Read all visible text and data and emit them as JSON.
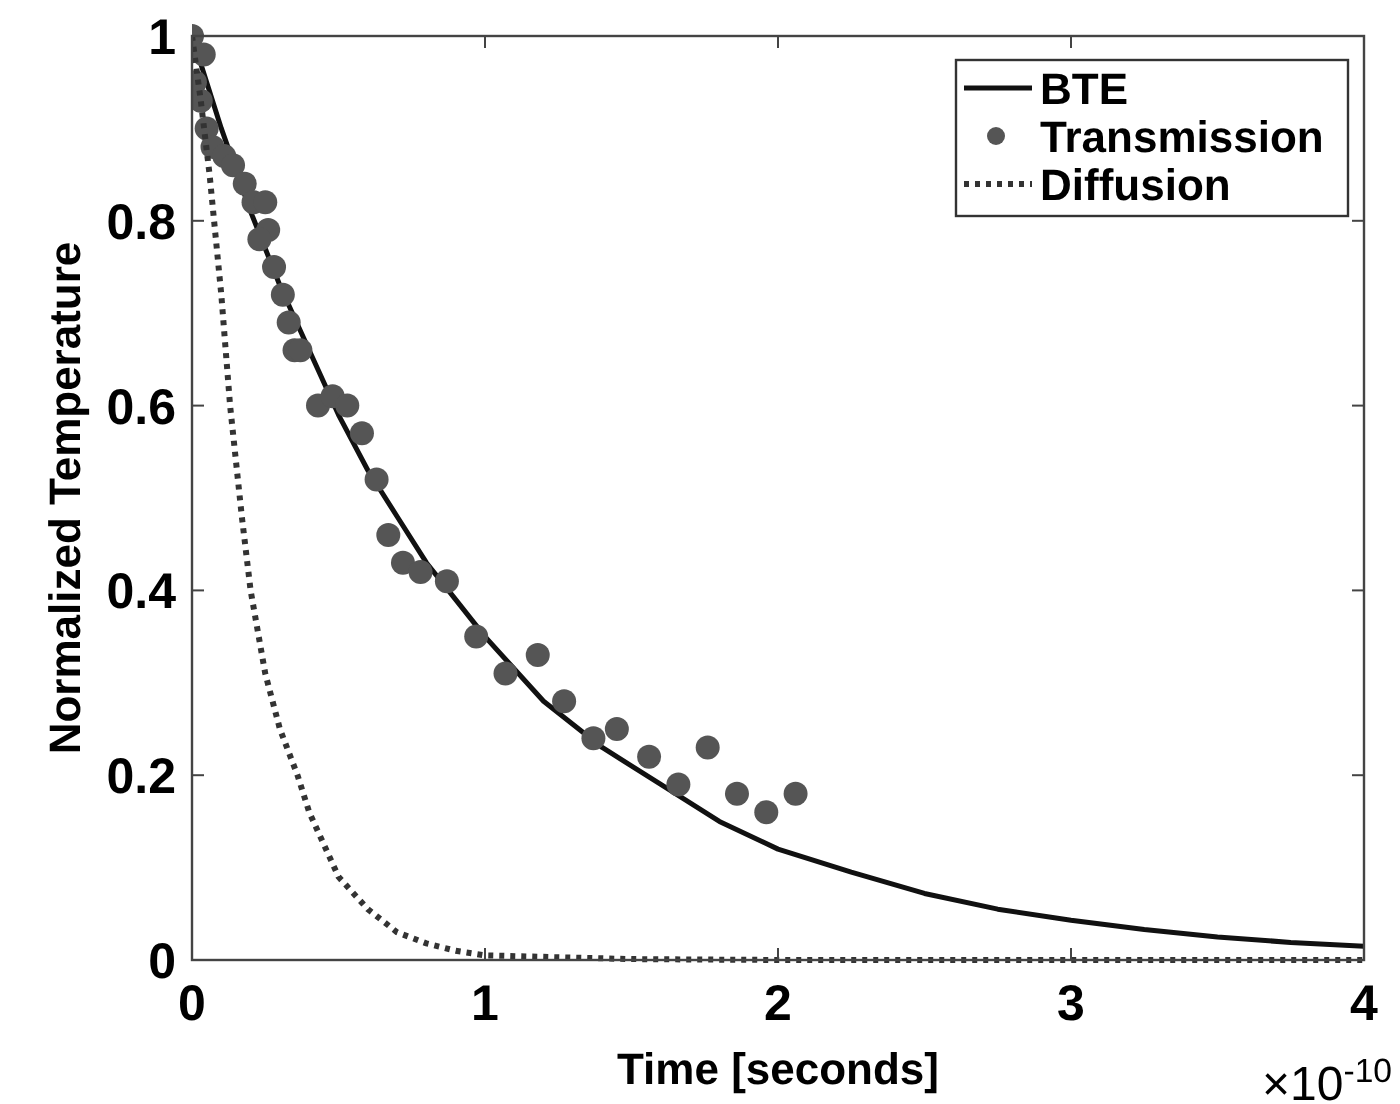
{
  "chart_data": {
    "type": "line",
    "xlabel": "Time [seconds]",
    "ylabel": "Normalized Temperature",
    "xlim": [
      0,
      4
    ],
    "ylim": [
      0,
      1
    ],
    "xticks": [
      0,
      1,
      2,
      3,
      4
    ],
    "yticks": [
      0,
      0.2,
      0.4,
      0.6,
      0.8,
      1
    ],
    "grid": false,
    "legend": "top right",
    "annotations": [
      "×10$^{-10}$"
    ],
    "series": [
      {
        "name": "BTE",
        "color": "#111111",
        "line_style": "solid",
        "x": [
          0,
          0.1,
          0.2,
          0.3,
          0.4,
          0.5,
          0.6,
          0.7,
          0.8,
          0.9,
          1,
          1.2,
          1.4,
          1.6,
          1.8,
          2,
          2.25,
          2.5,
          2.75,
          3,
          3.25,
          3.5,
          3.75,
          4
        ],
        "values": [
          1,
          0.9,
          0.81,
          0.73,
          0.66,
          0.59,
          0.53,
          0.48,
          0.43,
          0.39,
          0.35,
          0.28,
          0.23,
          0.19,
          0.15,
          0.12,
          0.095,
          0.072,
          0.055,
          0.043,
          0.033,
          0.025,
          0.019,
          0.015
        ]
      },
      {
        "name": "Transmission",
        "type": "scatter",
        "color": "#555555",
        "marker": "circle",
        "x": [
          0,
          0.04,
          0.01,
          0.03,
          0.05,
          0.07,
          0.11,
          0.14,
          0.18,
          0.21,
          0.25,
          0.26,
          0.23,
          0.28,
          0.31,
          0.33,
          0.35,
          0.37,
          0.43,
          0.48,
          0.53,
          0.58,
          0.63,
          0.67,
          0.72,
          0.78,
          0.87,
          0.97,
          1.07,
          1.18,
          1.27,
          1.37,
          1.45,
          1.56,
          1.66,
          1.76,
          1.86,
          1.96,
          2.06
        ],
        "values": [
          1,
          0.98,
          0.95,
          0.93,
          0.9,
          0.88,
          0.87,
          0.86,
          0.84,
          0.82,
          0.82,
          0.79,
          0.78,
          0.75,
          0.72,
          0.69,
          0.66,
          0.66,
          0.6,
          0.61,
          0.6,
          0.57,
          0.52,
          0.46,
          0.43,
          0.42,
          0.41,
          0.35,
          0.31,
          0.33,
          0.28,
          0.24,
          0.25,
          0.22,
          0.19,
          0.23,
          0.18,
          0.16,
          0.18
        ]
      },
      {
        "name": "Diffusion",
        "color": "#333333",
        "line_style": "dotted",
        "x": [
          0,
          0.03,
          0.06,
          0.1,
          0.13,
          0.17,
          0.2,
          0.25,
          0.3,
          0.36,
          0.4,
          0.5,
          0.6,
          0.7,
          0.8,
          0.9,
          1,
          1.5,
          2,
          3,
          4
        ],
        "values": [
          1,
          0.93,
          0.85,
          0.72,
          0.6,
          0.48,
          0.4,
          0.31,
          0.25,
          0.2,
          0.16,
          0.09,
          0.055,
          0.03,
          0.018,
          0.01,
          0.005,
          0.001,
          0,
          0,
          0
        ]
      }
    ]
  }
}
